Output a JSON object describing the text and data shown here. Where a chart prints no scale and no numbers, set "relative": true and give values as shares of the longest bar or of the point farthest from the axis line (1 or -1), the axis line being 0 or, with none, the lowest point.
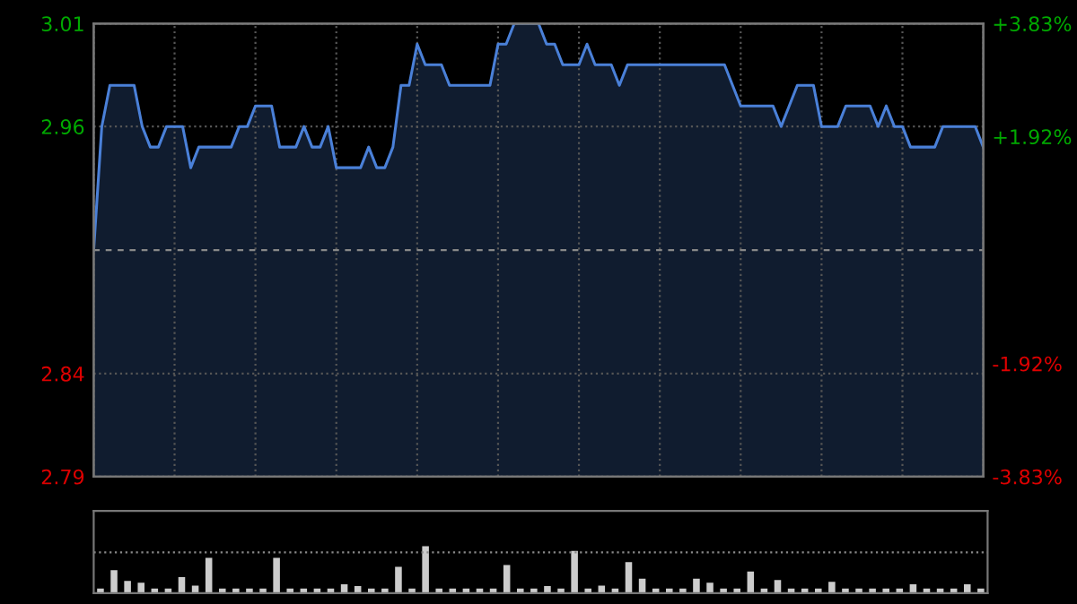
{
  "chart_data": [
    {
      "type": "area",
      "categories": [
        null,
        null,
        null,
        null,
        null,
        null,
        null,
        null,
        null,
        null,
        null,
        null,
        null,
        null,
        null,
        null,
        null,
        null,
        null,
        null,
        null,
        null,
        null,
        null,
        null,
        null,
        null,
        null,
        null,
        null,
        null,
        null,
        null,
        null,
        null,
        null,
        null,
        null,
        null,
        null,
        null,
        null,
        null,
        null,
        null,
        null,
        null,
        null,
        null,
        null,
        null,
        null,
        null,
        null,
        null,
        null,
        null,
        null,
        null,
        null,
        null,
        null,
        null,
        null,
        null,
        null,
        null,
        null,
        null,
        null,
        null,
        null,
        null,
        null,
        null,
        null,
        null,
        null,
        null,
        null,
        null,
        null,
        null,
        null,
        null,
        null,
        null,
        null,
        null,
        null,
        null,
        null,
        null,
        null,
        null,
        null,
        null,
        null,
        null,
        null,
        null,
        null,
        null,
        null,
        null,
        null,
        null,
        null,
        null,
        null,
        null
      ],
      "series": [
        {
          "color": "#4a80d8",
          "values": [
            2.9,
            2.96,
            2.98,
            2.98,
            2.98,
            2.98,
            2.96,
            2.95,
            2.95,
            2.96,
            2.96,
            2.96,
            2.94,
            2.95,
            2.95,
            2.95,
            2.95,
            2.95,
            2.96,
            2.96,
            2.97,
            2.97,
            2.97,
            2.95,
            2.95,
            2.95,
            2.96,
            2.95,
            2.95,
            2.96,
            2.94,
            2.94,
            2.94,
            2.94,
            2.95,
            2.94,
            2.94,
            2.95,
            2.98,
            2.98,
            3.0,
            2.99,
            2.99,
            2.99,
            2.98,
            2.98,
            2.98,
            2.98,
            2.98,
            2.98,
            3.0,
            3.0,
            3.01,
            3.01,
            3.01,
            3.01,
            3.0,
            3.0,
            2.99,
            2.99,
            2.99,
            3.0,
            2.99,
            2.99,
            2.99,
            2.98,
            2.99,
            2.99,
            2.99,
            2.99,
            2.99,
            2.99,
            2.99,
            2.99,
            2.99,
            2.99,
            2.99,
            2.99,
            2.99,
            2.98,
            2.97,
            2.97,
            2.97,
            2.97,
            2.97,
            2.96,
            2.97,
            2.98,
            2.98,
            2.98,
            2.96,
            2.96,
            2.96,
            2.97,
            2.97,
            2.97,
            2.97,
            2.96,
            2.97,
            2.96,
            2.96,
            2.95,
            2.95,
            2.95,
            2.95,
            2.96,
            2.96,
            2.96,
            2.96,
            2.96,
            2.95
          ]
        }
      ],
      "ylim": [
        2.79,
        3.01
      ],
      "yticks": [
        2.79,
        2.84,
        2.96,
        3.01
      ],
      "y2lim": [
        -3.83,
        3.83
      ],
      "y2ticks": [
        {
          "value": -3.83,
          "label": "-3.83%"
        },
        {
          "value": -1.92,
          "label": "-1.92%"
        },
        {
          "value": 1.92,
          "label": "+1.92%"
        },
        {
          "value": 3.83,
          "label": "+3.83%"
        }
      ],
      "ref_lines": [
        {
          "axis": "y",
          "value": 2.9,
          "color": "#888888",
          "line_style": "dashed"
        }
      ],
      "grid": true,
      "legend": false
    },
    {
      "type": "bar",
      "relative": true,
      "categories": [
        null,
        null,
        null,
        null,
        null,
        null,
        null,
        null,
        null,
        null,
        null,
        null,
        null,
        null,
        null,
        null,
        null,
        null,
        null,
        null,
        null,
        null,
        null,
        null,
        null,
        null,
        null,
        null,
        null,
        null,
        null,
        null,
        null,
        null,
        null,
        null,
        null,
        null,
        null,
        null,
        null,
        null,
        null,
        null,
        null,
        null,
        null,
        null,
        null,
        null,
        null,
        null,
        null,
        null,
        null,
        null,
        null,
        null,
        null,
        null,
        null,
        null,
        null,
        null,
        null,
        null
      ],
      "series": [
        {
          "color": "#cccccc",
          "values": [
            0.1,
            0.49,
            0.26,
            0.22,
            0.1,
            0.1,
            0.34,
            0.16,
            0.75,
            0.1,
            0.1,
            0.1,
            0.1,
            0.75,
            0.1,
            0.1,
            0.1,
            0.1,
            0.19,
            0.15,
            0.1,
            0.1,
            0.56,
            0.1,
            1.0,
            0.1,
            0.1,
            0.1,
            0.1,
            0.1,
            0.6,
            0.1,
            0.1,
            0.15,
            0.1,
            0.9,
            0.1,
            0.16,
            0.1,
            0.66,
            0.31,
            0.1,
            0.1,
            0.1,
            0.31,
            0.22,
            0.1,
            0.1,
            0.46,
            0.1,
            0.28,
            0.1,
            0.1,
            0.1,
            0.24,
            0.1,
            0.1,
            0.1,
            0.1,
            0.1,
            0.19,
            0.1,
            0.1,
            0.1,
            0.19,
            0.1
          ]
        }
      ],
      "ref_lines": [
        {
          "axis": "y",
          "value": 0.87,
          "color": "#888888",
          "line_style": "dotted"
        }
      ],
      "legend": false
    }
  ]
}
